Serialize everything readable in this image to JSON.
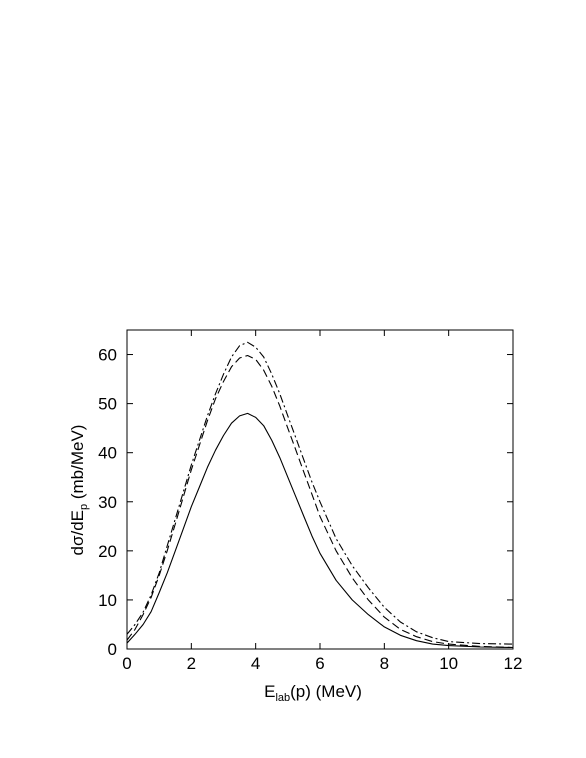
{
  "chart_data": {
    "type": "line",
    "title": "",
    "xlabel": {
      "main": "E",
      "sub": "lab",
      "rest": "(p)  (MeV)"
    },
    "ylabel": {
      "pre": "dσ/dE",
      "sub": "p",
      "post": "  (mb/MeV)"
    },
    "xlim": [
      0,
      12
    ],
    "ylim": [
      0,
      65
    ],
    "xticks": [
      "0",
      "2",
      "4",
      "6",
      "8",
      "10",
      "12"
    ],
    "yticks": [
      "0",
      "10",
      "20",
      "30",
      "40",
      "50",
      "60"
    ],
    "grid": false,
    "legend": "none",
    "series": [
      {
        "style": "solid",
        "x": [
          0.0,
          0.25,
          0.5,
          0.75,
          1.0,
          1.25,
          1.5,
          1.75,
          2.0,
          2.25,
          2.5,
          2.75,
          3.0,
          3.25,
          3.5,
          3.75,
          4.0,
          4.25,
          4.5,
          4.75,
          5.0,
          5.25,
          5.5,
          5.75,
          6.0,
          6.5,
          7.0,
          7.5,
          8.0,
          8.5,
          9.0,
          9.5,
          10.0,
          11.0,
          12.0
        ],
        "y": [
          1.2,
          3.0,
          5.0,
          7.6,
          11.5,
          15.5,
          20.0,
          24.5,
          29.0,
          33.0,
          37.0,
          40.5,
          43.5,
          46.0,
          47.5,
          48.0,
          47.2,
          45.5,
          42.5,
          39.0,
          35.0,
          31.0,
          27.0,
          23.0,
          19.5,
          14.0,
          10.0,
          7.0,
          4.5,
          2.8,
          1.7,
          1.0,
          0.7,
          0.4,
          0.3
        ]
      },
      {
        "style": "dashed",
        "x": [
          0.0,
          0.25,
          0.5,
          0.75,
          1.0,
          1.25,
          1.5,
          1.75,
          2.0,
          2.25,
          2.5,
          2.75,
          3.0,
          3.25,
          3.5,
          3.75,
          4.0,
          4.25,
          4.5,
          4.75,
          5.0,
          5.25,
          5.5,
          5.75,
          6.0,
          6.5,
          7.0,
          7.5,
          8.0,
          8.5,
          9.0,
          9.5,
          10.0,
          11.0,
          12.0
        ],
        "y": [
          1.8,
          4.0,
          7.0,
          10.5,
          15.0,
          20.0,
          25.5,
          31.0,
          36.5,
          41.5,
          46.5,
          51.0,
          54.5,
          57.5,
          59.3,
          59.8,
          59.0,
          56.8,
          53.5,
          49.5,
          45.0,
          40.5,
          36.0,
          31.5,
          27.0,
          20.0,
          14.5,
          10.0,
          6.5,
          4.0,
          2.5,
          1.5,
          1.0,
          0.5,
          0.3
        ]
      },
      {
        "style": "dashdot",
        "x": [
          0.0,
          0.25,
          0.5,
          0.75,
          1.0,
          1.25,
          1.5,
          1.75,
          2.0,
          2.25,
          2.5,
          2.75,
          3.0,
          3.25,
          3.5,
          3.75,
          4.0,
          4.25,
          4.5,
          4.75,
          5.0,
          5.25,
          5.5,
          5.75,
          6.0,
          6.5,
          7.0,
          7.5,
          8.0,
          8.5,
          9.0,
          9.5,
          10.0,
          11.0,
          12.0
        ],
        "y": [
          3.0,
          5.0,
          7.5,
          11.0,
          15.5,
          21.0,
          26.5,
          32.0,
          37.5,
          42.5,
          47.5,
          52.0,
          56.0,
          59.5,
          61.8,
          62.5,
          61.5,
          59.5,
          56.0,
          52.0,
          47.5,
          43.0,
          38.5,
          34.0,
          30.0,
          22.5,
          17.0,
          12.5,
          8.5,
          5.5,
          3.5,
          2.3,
          1.5,
          1.1,
          1.0
        ]
      }
    ]
  }
}
